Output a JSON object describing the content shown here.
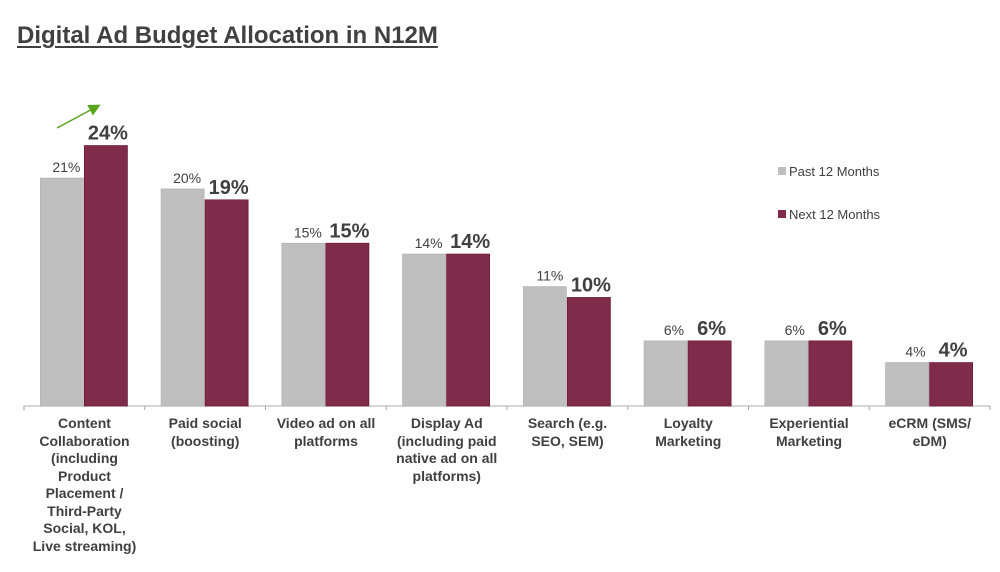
{
  "chart_data": {
    "type": "bar",
    "title": "Digital Ad Budget Allocation in N12M",
    "xlabel": "",
    "ylabel": "",
    "ylim": [
      0,
      26
    ],
    "grid": false,
    "legend_position": "right",
    "categories": [
      "Content Collaboration (including Product Placement / Third-Party Social, KOL, Live streaming)",
      "Paid social (boosting)",
      "Video ad on all platforms",
      "Display Ad (including paid native ad on all platforms)",
      "Search (e.g. SEO, SEM)",
      "Loyalty Marketing",
      "Experiential Marketing",
      "eCRM (SMS/ eDM)"
    ],
    "category_lines": [
      [
        "Content",
        "Collaboration",
        "(including",
        "Product",
        "Placement /",
        "Third-Party",
        "Social, KOL,",
        "Live streaming)"
      ],
      [
        "Paid social",
        "(boosting)"
      ],
      [
        "Video ad on all",
        "platforms"
      ],
      [
        "Display Ad",
        "(including paid",
        "native ad on all",
        "platforms)"
      ],
      [
        "Search (e.g.",
        "SEO, SEM)"
      ],
      [
        "Loyalty",
        "Marketing"
      ],
      [
        "Experiential",
        "Marketing"
      ],
      [
        "eCRM (SMS/",
        "eDM)"
      ]
    ],
    "series": [
      {
        "name": "Past 12 Months",
        "color": "#bfbfbf",
        "values": [
          21,
          20,
          15,
          14,
          11,
          6,
          6,
          4
        ],
        "labels": [
          "21%",
          "20%",
          "15%",
          "14%",
          "11%",
          "6%",
          "6%",
          "4%"
        ]
      },
      {
        "name": "Next 12 Months",
        "color": "#7f2c4b",
        "values": [
          24,
          19,
          15,
          14,
          10,
          6,
          6,
          4
        ],
        "labels": [
          "24%",
          "19%",
          "15%",
          "14%",
          "10%",
          "6%",
          "6%",
          "4%"
        ]
      }
    ],
    "annotations": [
      {
        "type": "arrow",
        "direction": "up-right",
        "color": "#5aa51e",
        "target_category": "Content Collaboration (including Product Placement / Third-Party Social, KOL, Live streaming)"
      }
    ]
  }
}
